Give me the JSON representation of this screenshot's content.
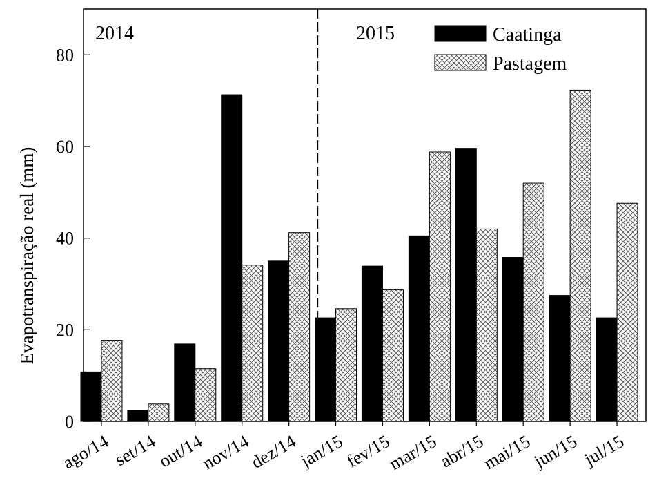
{
  "chart_data": {
    "type": "bar",
    "title": "",
    "xlabel": "",
    "ylabel": "Evapotranspiração real (mm)",
    "ylim": [
      0,
      90
    ],
    "yticks": [
      0,
      20,
      40,
      60,
      80
    ],
    "grid": false,
    "legend_position": "top-right",
    "categories": [
      "ago/14",
      "set/14",
      "out/14",
      "nov/14",
      "dez/14",
      "jan/15",
      "fev/15",
      "mar/15",
      "abr/15",
      "mai/15",
      "jun/15",
      "jul/15"
    ],
    "series": [
      {
        "name": "Caatinga",
        "pattern": "solid",
        "color": "#000000",
        "values": [
          10.8,
          2.4,
          16.9,
          71.3,
          35.0,
          22.6,
          33.9,
          40.5,
          59.6,
          35.8,
          27.5,
          22.6
        ]
      },
      {
        "name": "Pastagem",
        "pattern": "crosshatch",
        "color": "#ffffff",
        "values": [
          17.7,
          3.8,
          11.5,
          34.1,
          41.2,
          24.6,
          28.7,
          58.8,
          42.0,
          52.0,
          72.3,
          47.6
        ]
      }
    ],
    "annotations": [
      {
        "text": "2014",
        "region": "left"
      },
      {
        "text": "2015",
        "region": "right"
      }
    ],
    "divider_between": [
      "dez/14",
      "jan/15"
    ]
  }
}
